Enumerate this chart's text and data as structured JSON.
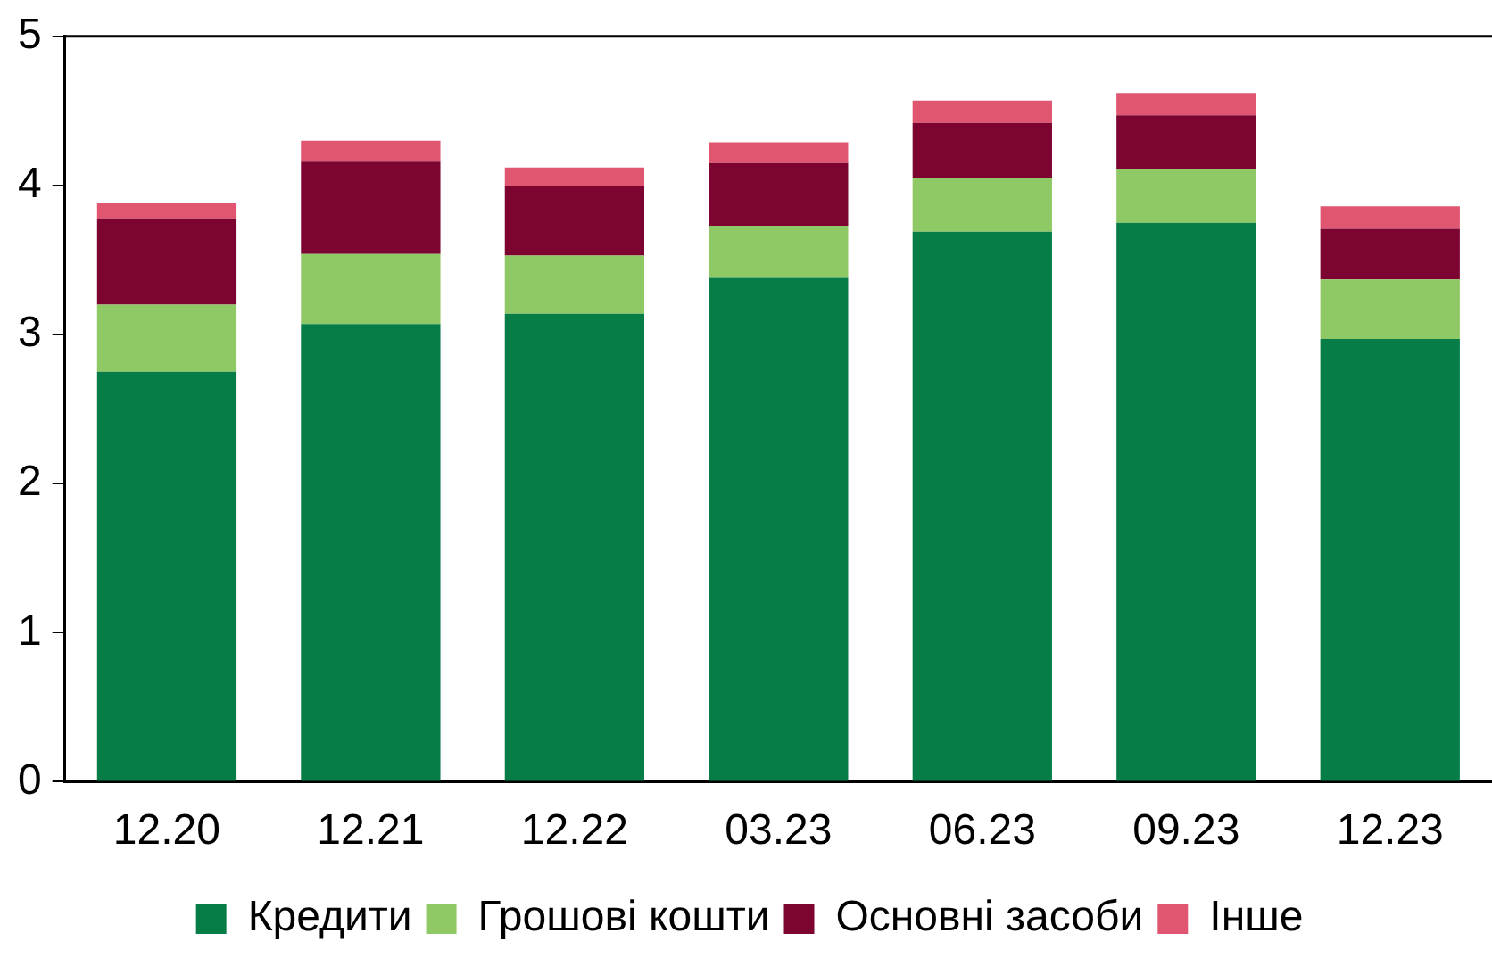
{
  "chart_data": {
    "type": "bar",
    "stacked": true,
    "categories": [
      "12.20",
      "12.21",
      "12.22",
      "03.23",
      "06.23",
      "09.23",
      "12.23"
    ],
    "series": [
      {
        "name": "Кредити",
        "color": "#067d47",
        "values": [
          2.75,
          3.07,
          3.14,
          3.38,
          3.69,
          3.75,
          2.97
        ]
      },
      {
        "name": "Грошові кошти",
        "color": "#8fc965",
        "values": [
          0.45,
          0.47,
          0.39,
          0.35,
          0.36,
          0.36,
          0.4
        ]
      },
      {
        "name": "Основні засоби",
        "color": "#7d0430",
        "values": [
          0.58,
          0.62,
          0.47,
          0.42,
          0.37,
          0.36,
          0.34
        ]
      },
      {
        "name": "Інше",
        "color": "#e05570",
        "values": [
          0.1,
          0.14,
          0.12,
          0.14,
          0.15,
          0.15,
          0.15
        ]
      }
    ],
    "ylim": [
      0,
      5
    ],
    "yticks": [
      0,
      1,
      2,
      3,
      4,
      5
    ],
    "grid": false,
    "legend": "bottom"
  }
}
